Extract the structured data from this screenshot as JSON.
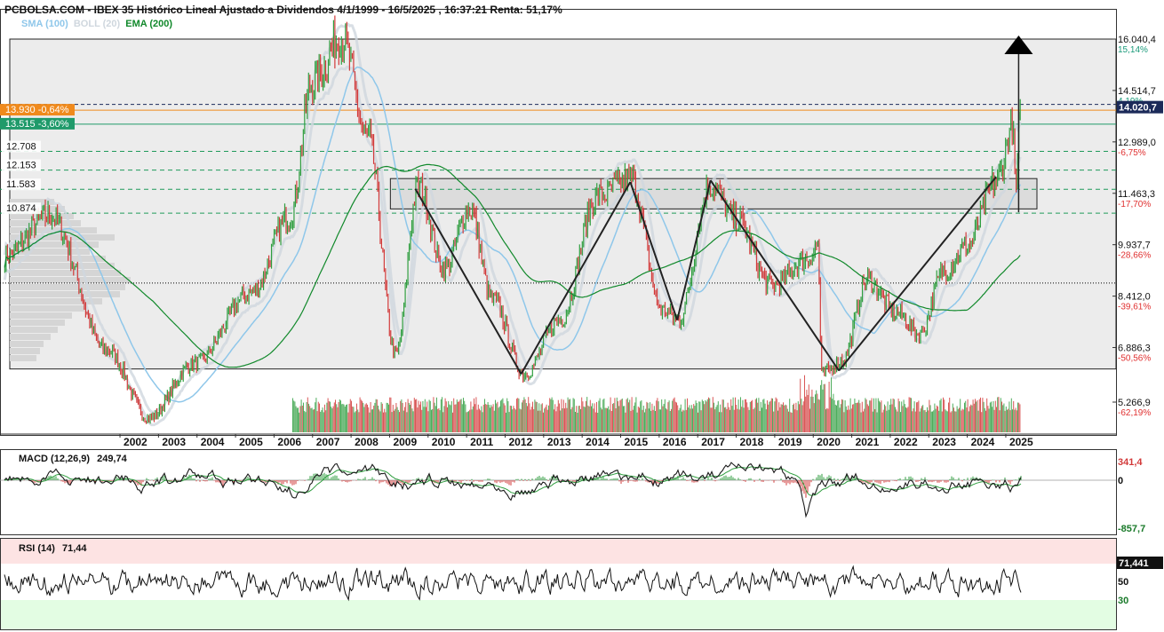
{
  "header": {
    "title": "PCBOLSA.COM - IBEX 35 Histórico Lineal Ajustado a Dividendos 4/1/1999 - 16/5/2025 , 16:37:21 Renta: 51,17%"
  },
  "legend": [
    {
      "label": "SMA (100)",
      "color": "#8fc7ea"
    },
    {
      "label": "BOLL (20)",
      "color": "#cfd7de"
    },
    {
      "label": "EMA (200)",
      "color": "#11892b"
    }
  ],
  "macd": {
    "label": "MACD (12,26,9)",
    "value": "249,74",
    "axis": [
      "341,4",
      "0",
      "-857,7"
    ]
  },
  "rsi": {
    "label": "RSI (14)",
    "value": "71,44",
    "axis_value": "71,441",
    "axis": [
      "50",
      "30"
    ]
  },
  "chart_data": {
    "type": "line",
    "x_range": [
      "1999-01-04",
      "2025-05-16"
    ],
    "x_ticks": [
      "2002",
      "2003",
      "2004",
      "2005",
      "2006",
      "2007",
      "2008",
      "2009",
      "2010",
      "2011",
      "2012",
      "2013",
      "2014",
      "2015",
      "2016",
      "2017",
      "2018",
      "2019",
      "2020",
      "2021",
      "2022",
      "2023",
      "2024",
      "2025"
    ],
    "y_range": [
      4700,
      16500
    ],
    "right_axis": [
      {
        "value": 16040.4,
        "label": "16.040,4",
        "pct": "15,14%",
        "pct_color": "#1a9a7a"
      },
      {
        "value": 14514.7,
        "label": "14.514,7",
        "pct": "4,19%",
        "pct_color": "#1a9a7a"
      },
      {
        "value": 12989.0,
        "label": "12.989,0",
        "pct": "-6,75%",
        "pct_color": "#e03030"
      },
      {
        "value": 11463.3,
        "label": "11.463,3",
        "pct": "-17,70%",
        "pct_color": "#e03030"
      },
      {
        "value": 9937.7,
        "label": "9.937,7",
        "pct": "-28,66%",
        "pct_color": "#e03030"
      },
      {
        "value": 8412.0,
        "label": "8.412,0",
        "pct": "-39,61%",
        "pct_color": "#e03030"
      },
      {
        "value": 6886.3,
        "label": "6.886,3",
        "pct": "-50,56%",
        "pct_color": "#e03030"
      },
      {
        "value": 5266.9,
        "label": "5.266,9",
        "pct": "-62,19%",
        "pct_color": "#e03030"
      }
    ],
    "last_price": {
      "value": 14020.7,
      "label": "14.020,7"
    },
    "levels": [
      {
        "value": 13930,
        "label": "13.930",
        "change": "-0,64%",
        "color": "#f08a1c"
      },
      {
        "value": 13515,
        "label": "13.515",
        "change": "-3,60%",
        "color": "#1f9a6a"
      }
    ],
    "support_labels": [
      {
        "value": 12708,
        "label": "12.708"
      },
      {
        "value": 12153,
        "label": "12.153"
      },
      {
        "value": 11583,
        "label": "11.583"
      },
      {
        "value": 10874,
        "label": "10.874"
      }
    ],
    "dotted_level": 8800,
    "range_box": {
      "top": 16040,
      "bottom": 6250,
      "x_start": "1999-01-04",
      "x_end": "2025-05-16"
    },
    "resistance_box": {
      "top": 11900,
      "bottom": 11000,
      "x_start": "2009-09-01",
      "x_end": "2025-09-01"
    },
    "pattern_lines": [
      [
        "2009-09-01",
        11600,
        "2012-06-01",
        6100
      ],
      [
        "2012-06-01",
        6100,
        "2015-04-01",
        11800
      ],
      [
        "2015-04-01",
        11800,
        "2016-06-20",
        7700
      ],
      [
        "2016-06-20",
        7700,
        "2017-05-01",
        11850
      ],
      [
        "2017-05-01",
        11850,
        "2020-09-01",
        6200
      ],
      [
        "2020-09-01",
        6200,
        "2024-10-01",
        11950
      ]
    ],
    "arrow": {
      "x": "2025-05-01",
      "from": 10900,
      "to": 16040
    },
    "key_points": [
      [
        "1999-01-04",
        9600
      ],
      [
        "2000-03-01",
        10800
      ],
      [
        "2001-09-01",
        6800
      ],
      [
        "2002-10-01",
        4800
      ],
      [
        "2003-12-01",
        6400
      ],
      [
        "2005-06-01",
        8500
      ],
      [
        "2006-06-01",
        10800
      ],
      [
        "2007-01-01",
        14800
      ],
      [
        "2007-10-01",
        16100
      ],
      [
        "2008-06-01",
        13200
      ],
      [
        "2009-03-01",
        6700
      ],
      [
        "2009-10-01",
        11700
      ],
      [
        "2010-06-01",
        9200
      ],
      [
        "2011-02-01",
        11000
      ],
      [
        "2011-09-01",
        8300
      ],
      [
        "2012-07-01",
        6100
      ],
      [
        "2013-06-01",
        7700
      ],
      [
        "2014-06-01",
        11400
      ],
      [
        "2015-04-01",
        11900
      ],
      [
        "2016-02-01",
        8000
      ],
      [
        "2016-07-01",
        7700
      ],
      [
        "2017-05-01",
        11700
      ],
      [
        "2018-01-01",
        10700
      ],
      [
        "2018-12-01",
        8700
      ],
      [
        "2019-11-01",
        9500
      ],
      [
        "2020-02-15",
        9900
      ],
      [
        "2020-03-20",
        6100
      ],
      [
        "2020-10-01",
        6500
      ],
      [
        "2021-06-01",
        8900
      ],
      [
        "2022-03-01",
        7900
      ],
      [
        "2022-10-01",
        7300
      ],
      [
        "2023-06-01",
        9200
      ],
      [
        "2024-01-01",
        9900
      ],
      [
        "2024-10-01",
        11800
      ],
      [
        "2025-03-01",
        13400
      ],
      [
        "2025-04-08",
        11600
      ],
      [
        "2025-05-16",
        14020
      ]
    ]
  }
}
